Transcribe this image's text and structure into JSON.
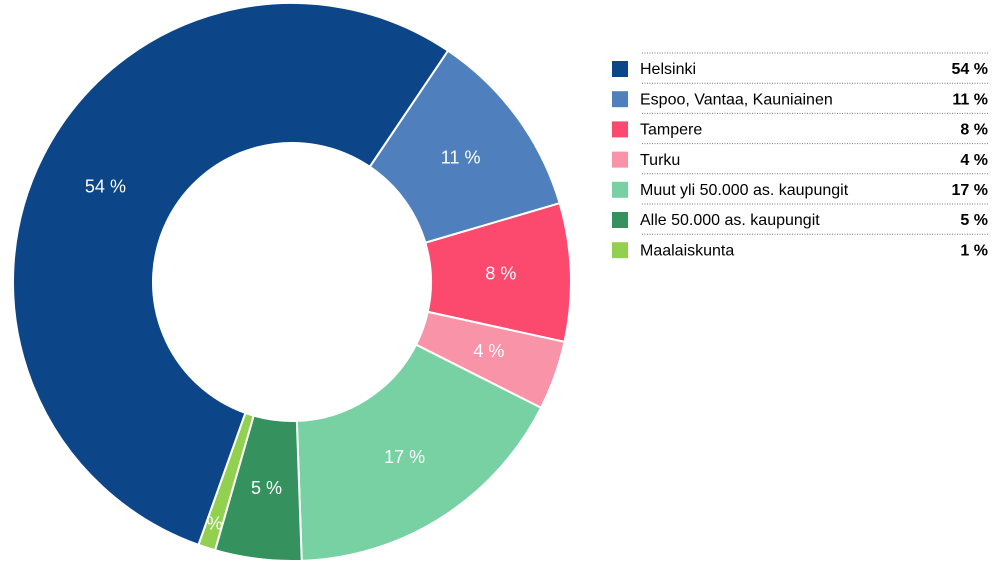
{
  "chart_data": {
    "type": "donut",
    "categories": [
      "Helsinki",
      "Espoo, Vantaa, Kauniainen",
      "Tampere",
      "Turku",
      "Muut yli 50.000 as. kaupungit",
      "Alle 50.000 as. kaupungit",
      "Maalaiskunta"
    ],
    "values": [
      54,
      11,
      8,
      4,
      17,
      5,
      1
    ],
    "value_labels": [
      "54 %",
      "11 %",
      "8 %",
      "4 %",
      "17 %",
      "5 %",
      "1 %"
    ],
    "colors": [
      "#0c4688",
      "#4f80bd",
      "#fb4a6e",
      "#f993a8",
      "#77d1a3",
      "#35925f",
      "#92d050"
    ],
    "legend": "right"
  }
}
